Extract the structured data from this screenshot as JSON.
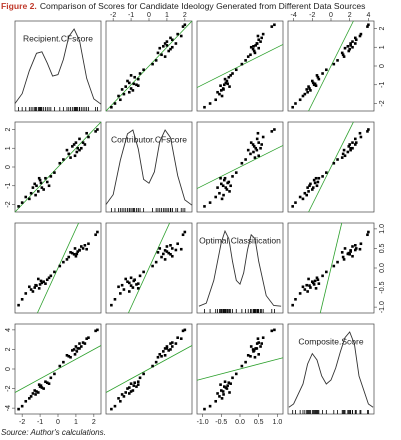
{
  "chart_data": {
    "type": "scatter-matrix",
    "figure_label": "Figure 2.",
    "title": "Comparison of Scores for Candidate Ideology Generated from Different Data Sources",
    "source": "Source: Author's calculations.",
    "point_color": "#000000",
    "identity_color": "#2ca02c",
    "density_color": "#333333",
    "variables": [
      {
        "name": "Recipient.CFscore",
        "lim": [
          -2.4,
          2.4
        ],
        "ticks": [
          -2,
          -1,
          0,
          1,
          2
        ],
        "density": {
          "x": [
            -2.4,
            -2,
            -1.6,
            -1.2,
            -0.9,
            -0.6,
            -0.3,
            0,
            0.3,
            0.6,
            0.9,
            1.2,
            1.6,
            2,
            2.4
          ],
          "y": [
            0.02,
            0.15,
            0.45,
            0.68,
            0.7,
            0.55,
            0.38,
            0.4,
            0.6,
            0.9,
            1.0,
            0.85,
            0.35,
            0.08,
            0.01
          ]
        }
      },
      {
        "name": "Contributor.CFscore",
        "lim": [
          -2.4,
          2.4
        ],
        "ticks": [
          -2,
          -1,
          0,
          1,
          2
        ],
        "density": {
          "x": [
            -2.4,
            -2,
            -1.6,
            -1.2,
            -0.9,
            -0.6,
            -0.3,
            0,
            0.3,
            0.6,
            0.9,
            1.2,
            1.6,
            2,
            2.4
          ],
          "y": [
            0.02,
            0.15,
            0.6,
            0.95,
            1.0,
            0.75,
            0.35,
            0.3,
            0.45,
            0.85,
            1.0,
            0.9,
            0.4,
            0.08,
            0.01
          ]
        }
      },
      {
        "name": "Optimal.Classification",
        "lim": [
          -1.15,
          1.15
        ],
        "ticks": [
          {
            "value": -1,
            "label": "-1.0"
          },
          -0.5,
          {
            "value": 0,
            "label": "0.0"
          },
          0.5,
          {
            "value": 1,
            "label": "1.0"
          }
        ],
        "density": {
          "x": [
            -1.1,
            -0.9,
            -0.7,
            -0.5,
            -0.4,
            -0.3,
            -0.2,
            -0.1,
            0,
            0.1,
            0.2,
            0.3,
            0.4,
            0.5,
            0.7,
            0.9,
            1.1
          ],
          "y": [
            0.01,
            0.05,
            0.35,
            0.85,
            1.0,
            0.9,
            0.6,
            0.35,
            0.3,
            0.45,
            0.75,
            0.95,
            0.9,
            0.6,
            0.15,
            0.02,
            0.01
          ]
        }
      },
      {
        "name": "Composite.Score",
        "lim": [
          -4.6,
          4.6
        ],
        "ticks": [
          -4,
          -2,
          0,
          2,
          4
        ],
        "density": {
          "x": [
            -4.5,
            -4,
            -3,
            -2.5,
            -2,
            -1.5,
            -1,
            -0.5,
            0,
            0.5,
            1,
            1.5,
            2,
            2.5,
            3,
            4,
            4.5
          ],
          "y": [
            0.01,
            0.05,
            0.3,
            0.55,
            0.68,
            0.6,
            0.4,
            0.3,
            0.35,
            0.5,
            0.7,
            0.88,
            0.95,
            0.8,
            0.4,
            0.05,
            0.01
          ]
        }
      }
    ],
    "observations": [
      [
        -1.2,
        -1.0,
        -0.45,
        -2.3
      ],
      [
        -0.9,
        -1.1,
        -0.38,
        -1.9
      ],
      [
        -1.5,
        -1.4,
        -0.55,
        -2.8
      ],
      [
        -0.6,
        -0.8,
        -0.3,
        -1.4
      ],
      [
        -1.0,
        -0.7,
        -0.42,
        -1.8
      ],
      [
        -1.8,
        -1.6,
        -0.65,
        -3.3
      ],
      [
        -0.8,
        -1.2,
        -0.35,
        -2.0
      ],
      [
        -1.3,
        -0.9,
        -0.5,
        -2.2
      ],
      [
        -0.4,
        -0.5,
        -0.2,
        -0.9
      ],
      [
        -1.1,
        -1.3,
        -0.28,
        -2.4
      ],
      [
        -2.0,
        -1.9,
        -0.8,
        -3.8
      ],
      [
        -0.7,
        -0.6,
        -0.4,
        -1.3
      ],
      [
        -1.4,
        -1.1,
        -0.6,
        -2.5
      ],
      [
        -0.2,
        -0.3,
        -0.1,
        -0.5
      ],
      [
        -1.6,
        -1.7,
        -0.48,
        -3.0
      ],
      [
        -0.95,
        -0.85,
        -0.33,
        -1.7
      ],
      [
        -1.25,
        -1.5,
        -0.44,
        -2.6
      ],
      [
        -0.5,
        -1.0,
        -0.25,
        -1.5
      ],
      [
        -2.2,
        -2.1,
        -0.95,
        -4.1
      ],
      [
        -1.05,
        -0.6,
        -0.52,
        -1.6
      ],
      [
        1.1,
        1.0,
        0.42,
        2.1
      ],
      [
        0.9,
        1.2,
        0.35,
        2.0
      ],
      [
        1.4,
        1.3,
        0.5,
        2.7
      ],
      [
        0.6,
        0.7,
        0.28,
        1.3
      ],
      [
        1.2,
        0.9,
        0.45,
        2.1
      ],
      [
        1.7,
        1.6,
        0.62,
        3.2
      ],
      [
        0.8,
        1.1,
        0.38,
        1.9
      ],
      [
        1.3,
        1.0,
        0.55,
        2.3
      ],
      [
        0.3,
        0.4,
        0.15,
        0.7
      ],
      [
        1.0,
        1.3,
        0.3,
        2.3
      ],
      [
        2.1,
        1.9,
        0.85,
        3.9
      ],
      [
        0.7,
        0.5,
        0.4,
        1.2
      ],
      [
        1.5,
        1.2,
        0.58,
        2.6
      ],
      [
        0.1,
        0.2,
        0.05,
        0.3
      ],
      [
        1.6,
        1.8,
        0.48,
        3.1
      ],
      [
        1.05,
        0.8,
        0.36,
        1.8
      ],
      [
        1.2,
        1.5,
        0.46,
        2.6
      ],
      [
        0.5,
        0.9,
        0.22,
        1.4
      ],
      [
        2.2,
        2.0,
        0.92,
        4.0
      ],
      [
        0.95,
        0.6,
        0.5,
        1.5
      ]
    ]
  }
}
